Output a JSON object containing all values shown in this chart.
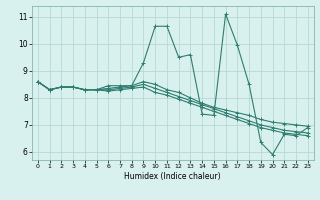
{
  "title": "",
  "xlabel": "Humidex (Indice chaleur)",
  "background_color": "#d8f0ee",
  "grid_color": "#b8d8d4",
  "line_color": "#2e7d6e",
  "xlim": [
    -0.5,
    23.5
  ],
  "ylim": [
    5.7,
    11.4
  ],
  "xticks": [
    0,
    1,
    2,
    3,
    4,
    5,
    6,
    7,
    8,
    9,
    10,
    11,
    12,
    13,
    14,
    15,
    16,
    17,
    18,
    19,
    20,
    21,
    22,
    23
  ],
  "yticks": [
    6,
    7,
    8,
    9,
    10,
    11
  ],
  "series": [
    [
      8.6,
      8.3,
      8.4,
      8.4,
      8.3,
      8.3,
      8.45,
      8.45,
      8.45,
      9.3,
      10.65,
      10.65,
      9.5,
      9.6,
      7.4,
      7.35,
      11.1,
      9.95,
      8.5,
      6.35,
      5.9,
      6.65,
      6.6,
      6.9
    ],
    [
      8.6,
      8.3,
      8.4,
      8.4,
      8.3,
      8.3,
      8.35,
      8.4,
      8.45,
      8.6,
      8.5,
      8.3,
      8.2,
      8.0,
      7.8,
      7.65,
      7.55,
      7.45,
      7.35,
      7.2,
      7.1,
      7.05,
      7.0,
      6.95
    ],
    [
      8.6,
      8.3,
      8.4,
      8.4,
      8.3,
      8.3,
      8.3,
      8.35,
      8.4,
      8.5,
      8.35,
      8.2,
      8.05,
      7.9,
      7.75,
      7.6,
      7.45,
      7.3,
      7.15,
      7.0,
      6.9,
      6.8,
      6.75,
      6.7
    ],
    [
      8.6,
      8.3,
      8.4,
      8.4,
      8.3,
      8.3,
      8.25,
      8.3,
      8.35,
      8.4,
      8.2,
      8.1,
      7.95,
      7.8,
      7.65,
      7.5,
      7.35,
      7.2,
      7.05,
      6.9,
      6.8,
      6.7,
      6.65,
      6.6
    ]
  ]
}
